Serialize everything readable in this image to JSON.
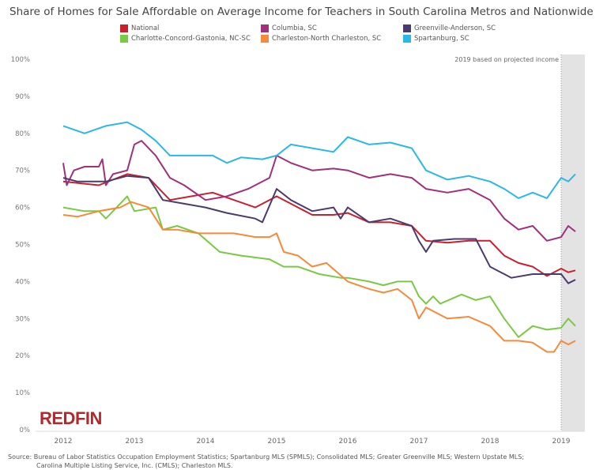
{
  "chart_data": {
    "type": "line",
    "title": "Share of Homes for Sale Affordable on Average Income for Teachers in South Carolina Metros and Nationwide",
    "xlabel": "",
    "ylabel": "",
    "xlim": [
      2011.8,
      2019.35
    ],
    "ylim": [
      0,
      100
    ],
    "x_ticks": [
      "2012",
      "2013",
      "2014",
      "2015",
      "2016",
      "2017",
      "2018",
      "2019"
    ],
    "y_ticks": [
      "0%",
      "10%",
      "20%",
      "30%",
      "40%",
      "50%",
      "60%",
      "70%",
      "80%",
      "90%",
      "100%"
    ],
    "grid": false,
    "legend_placement": "top",
    "annotation": "2019 based on projected income",
    "shaded_region_start": 2019.0,
    "series": [
      {
        "name": "National",
        "color": "#c8202f",
        "points": [
          [
            2012,
            67
          ],
          [
            2012.5,
            66
          ],
          [
            2012.9,
            69
          ],
          [
            2013.2,
            68
          ],
          [
            2013.5,
            62
          ],
          [
            2013.8,
            63
          ],
          [
            2014.1,
            64
          ],
          [
            2014.4,
            62
          ],
          [
            2014.7,
            60
          ],
          [
            2015,
            63
          ],
          [
            2015.2,
            61
          ],
          [
            2015.5,
            58
          ],
          [
            2015.8,
            58
          ],
          [
            2016,
            58.5
          ],
          [
            2016.3,
            56
          ],
          [
            2016.6,
            56
          ],
          [
            2016.9,
            55
          ],
          [
            2017.1,
            51
          ],
          [
            2017.4,
            50.5
          ],
          [
            2017.7,
            51
          ],
          [
            2018,
            51
          ],
          [
            2018.2,
            47
          ],
          [
            2018.4,
            45
          ],
          [
            2018.6,
            44
          ],
          [
            2018.8,
            41.5
          ],
          [
            2019,
            43.5
          ],
          [
            2019.1,
            42.5
          ],
          [
            2019.2,
            43
          ]
        ]
      },
      {
        "name": "Columbia, SC",
        "color": "#a0307a",
        "points": [
          [
            2012,
            72
          ],
          [
            2012.05,
            66
          ],
          [
            2012.15,
            70
          ],
          [
            2012.3,
            71
          ],
          [
            2012.5,
            71
          ],
          [
            2012.55,
            73
          ],
          [
            2012.6,
            66
          ],
          [
            2012.7,
            69
          ],
          [
            2012.9,
            70
          ],
          [
            2013,
            77
          ],
          [
            2013.1,
            78
          ],
          [
            2013.3,
            74
          ],
          [
            2013.5,
            68
          ],
          [
            2013.7,
            66
          ],
          [
            2014,
            62
          ],
          [
            2014.3,
            63
          ],
          [
            2014.6,
            65
          ],
          [
            2014.9,
            68
          ],
          [
            2015,
            74
          ],
          [
            2015.2,
            72
          ],
          [
            2015.5,
            70
          ],
          [
            2015.8,
            70.5
          ],
          [
            2016,
            70
          ],
          [
            2016.3,
            68
          ],
          [
            2016.6,
            69
          ],
          [
            2016.9,
            68
          ],
          [
            2017.1,
            65
          ],
          [
            2017.4,
            64
          ],
          [
            2017.7,
            65
          ],
          [
            2018,
            62
          ],
          [
            2018.2,
            57
          ],
          [
            2018.4,
            54
          ],
          [
            2018.6,
            55
          ],
          [
            2018.8,
            51
          ],
          [
            2019,
            52
          ],
          [
            2019.1,
            55
          ],
          [
            2019.2,
            53.5
          ]
        ]
      },
      {
        "name": "Greenville-Anderson, SC",
        "color": "#4b3a6e",
        "points": [
          [
            2012,
            68
          ],
          [
            2012.2,
            67
          ],
          [
            2012.6,
            67
          ],
          [
            2012.9,
            68.5
          ],
          [
            2013.2,
            68
          ],
          [
            2013.4,
            62
          ],
          [
            2013.7,
            61
          ],
          [
            2014,
            60
          ],
          [
            2014.3,
            58.5
          ],
          [
            2014.7,
            57
          ],
          [
            2014.8,
            56
          ],
          [
            2015,
            65
          ],
          [
            2015.2,
            62
          ],
          [
            2015.5,
            59
          ],
          [
            2015.8,
            60
          ],
          [
            2015.9,
            57
          ],
          [
            2016,
            60
          ],
          [
            2016.3,
            56
          ],
          [
            2016.6,
            57
          ],
          [
            2016.9,
            55
          ],
          [
            2017,
            51
          ],
          [
            2017.1,
            48
          ],
          [
            2017.2,
            51
          ],
          [
            2017.5,
            51.5
          ],
          [
            2017.8,
            51.5
          ],
          [
            2018,
            44
          ],
          [
            2018.3,
            41
          ],
          [
            2018.6,
            42
          ],
          [
            2018.8,
            42
          ],
          [
            2019,
            42
          ],
          [
            2019.1,
            39.5
          ],
          [
            2019.2,
            40.5
          ]
        ]
      },
      {
        "name": "Charlotte-Concord-Gastonia, NC-SC",
        "color": "#7ac943",
        "points": [
          [
            2012,
            60
          ],
          [
            2012.3,
            59
          ],
          [
            2012.5,
            59
          ],
          [
            2012.6,
            57
          ],
          [
            2012.8,
            61
          ],
          [
            2012.9,
            63
          ],
          [
            2013,
            59
          ],
          [
            2013.3,
            60
          ],
          [
            2013.4,
            54
          ],
          [
            2013.6,
            55
          ],
          [
            2013.9,
            53
          ],
          [
            2014.2,
            48
          ],
          [
            2014.5,
            47
          ],
          [
            2014.9,
            46
          ],
          [
            2015.1,
            44
          ],
          [
            2015.3,
            44
          ],
          [
            2015.6,
            42
          ],
          [
            2015.9,
            41
          ],
          [
            2016,
            41
          ],
          [
            2016.3,
            40
          ],
          [
            2016.5,
            39
          ],
          [
            2016.7,
            40
          ],
          [
            2016.9,
            40
          ],
          [
            2017,
            36
          ],
          [
            2017.1,
            34
          ],
          [
            2017.2,
            36
          ],
          [
            2017.3,
            34
          ],
          [
            2017.6,
            36.5
          ],
          [
            2017.8,
            35
          ],
          [
            2018,
            36
          ],
          [
            2018.2,
            30
          ],
          [
            2018.4,
            25
          ],
          [
            2018.6,
            28
          ],
          [
            2018.8,
            27
          ],
          [
            2019,
            27.5
          ],
          [
            2019.1,
            30
          ],
          [
            2019.2,
            28
          ]
        ]
      },
      {
        "name": "Charleston-North Charleston, SC",
        "color": "#f58a3a",
        "points": [
          [
            2012,
            58
          ],
          [
            2012.2,
            57.5
          ],
          [
            2012.5,
            59
          ],
          [
            2012.8,
            60
          ],
          [
            2012.95,
            61.5
          ],
          [
            2013.2,
            60
          ],
          [
            2013.4,
            54
          ],
          [
            2013.6,
            54
          ],
          [
            2013.9,
            53
          ],
          [
            2014.2,
            53
          ],
          [
            2014.4,
            53
          ],
          [
            2014.7,
            52
          ],
          [
            2014.9,
            52
          ],
          [
            2015,
            53
          ],
          [
            2015.1,
            48
          ],
          [
            2015.3,
            47
          ],
          [
            2015.5,
            44
          ],
          [
            2015.7,
            45
          ],
          [
            2016,
            40
          ],
          [
            2016.3,
            38
          ],
          [
            2016.5,
            37
          ],
          [
            2016.7,
            38
          ],
          [
            2016.9,
            35
          ],
          [
            2017,
            30
          ],
          [
            2017.1,
            33
          ],
          [
            2017.2,
            32
          ],
          [
            2017.4,
            30
          ],
          [
            2017.7,
            30.5
          ],
          [
            2018,
            28
          ],
          [
            2018.2,
            24
          ],
          [
            2018.4,
            24
          ],
          [
            2018.6,
            23.5
          ],
          [
            2018.8,
            21
          ],
          [
            2018.9,
            21
          ],
          [
            2019,
            24
          ],
          [
            2019.1,
            23
          ],
          [
            2019.2,
            24
          ]
        ]
      },
      {
        "name": "Spartanburg, SC",
        "color": "#2ab8e8",
        "points": [
          [
            2012,
            82
          ],
          [
            2012.3,
            80
          ],
          [
            2012.6,
            82
          ],
          [
            2012.9,
            83
          ],
          [
            2013.1,
            81
          ],
          [
            2013.3,
            78
          ],
          [
            2013.5,
            74
          ],
          [
            2013.8,
            74
          ],
          [
            2014.1,
            74
          ],
          [
            2014.3,
            72
          ],
          [
            2014.5,
            73.5
          ],
          [
            2014.8,
            73
          ],
          [
            2015,
            74
          ],
          [
            2015.2,
            77
          ],
          [
            2015.5,
            76
          ],
          [
            2015.8,
            75
          ],
          [
            2016,
            79
          ],
          [
            2016.3,
            77
          ],
          [
            2016.6,
            77.5
          ],
          [
            2016.9,
            76
          ],
          [
            2017.1,
            70
          ],
          [
            2017.4,
            67.5
          ],
          [
            2017.7,
            68.5
          ],
          [
            2018,
            67
          ],
          [
            2018.2,
            65
          ],
          [
            2018.4,
            62.5
          ],
          [
            2018.6,
            64
          ],
          [
            2018.8,
            62.5
          ],
          [
            2019,
            68
          ],
          [
            2019.1,
            67
          ],
          [
            2019.2,
            69
          ]
        ]
      }
    ]
  },
  "source_line1": "Source: Bureau of Labor Statistics Occupation Employment Statistics; Spartanburg MLS (SPMLS); Consolidated MLS; Greater Greenville MLS; Western Upstate MLS;",
  "source_line2": "Carolina Multiple Listing Service, Inc. (CMLS); Charleston MLS.",
  "logo": "REDFIN"
}
